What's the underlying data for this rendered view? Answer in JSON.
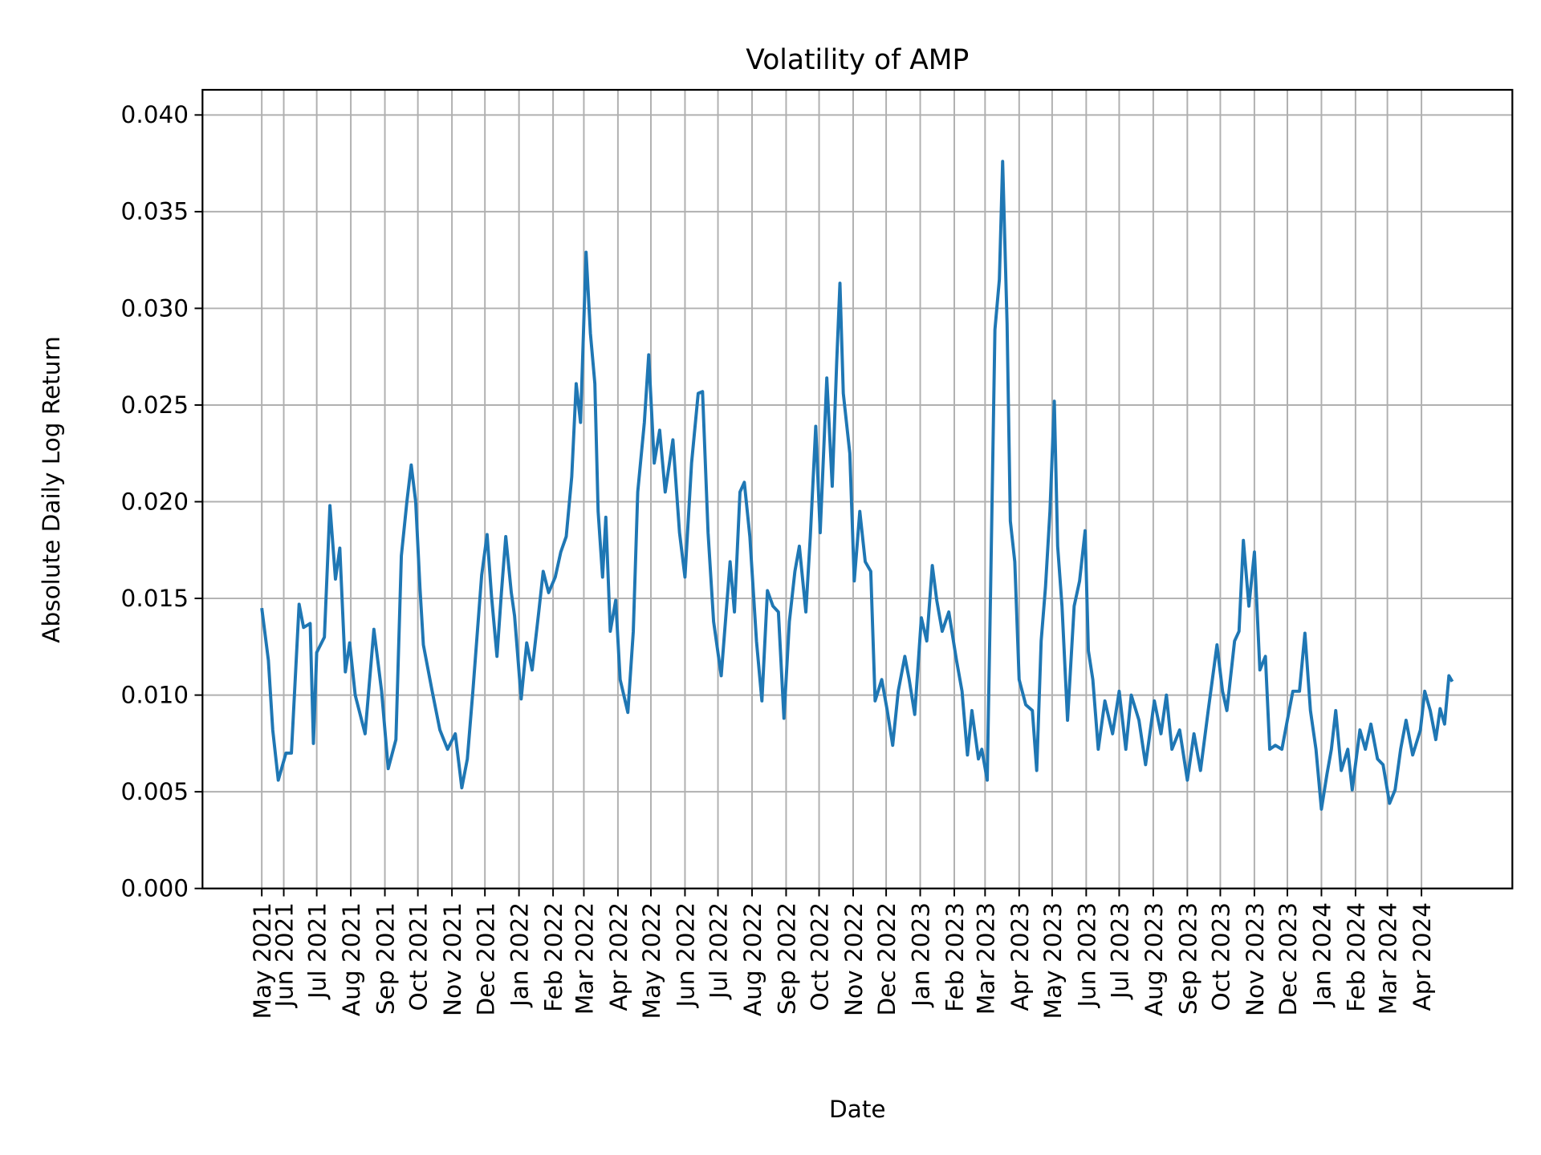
{
  "chart_data": {
    "type": "line",
    "title": "Volatility of AMP",
    "xlabel": "Date",
    "ylabel": "Absolute Daily Log Return",
    "ylim": [
      0,
      0.0413
    ],
    "yticks": [
      "0.000",
      "0.005",
      "0.010",
      "0.015",
      "0.020",
      "0.025",
      "0.030",
      "0.035",
      "0.040"
    ],
    "grid": true,
    "line_color": "#1f77b4",
    "xticks": [
      {
        "date": "2021-05-12",
        "label": "May 2021"
      },
      {
        "date": "2021-06-01",
        "label": "Jun 2021"
      },
      {
        "date": "2021-07-01",
        "label": "Jul 2021"
      },
      {
        "date": "2021-08-01",
        "label": "Aug 2021"
      },
      {
        "date": "2021-09-01",
        "label": "Sep 2021"
      },
      {
        "date": "2021-10-01",
        "label": "Oct 2021"
      },
      {
        "date": "2021-11-01",
        "label": "Nov 2021"
      },
      {
        "date": "2021-12-01",
        "label": "Dec 2021"
      },
      {
        "date": "2022-01-01",
        "label": "Jan 2022"
      },
      {
        "date": "2022-02-01",
        "label": "Feb 2022"
      },
      {
        "date": "2022-03-01",
        "label": "Mar 2022"
      },
      {
        "date": "2022-04-01",
        "label": "Apr 2022"
      },
      {
        "date": "2022-05-01",
        "label": "May 2022"
      },
      {
        "date": "2022-06-01",
        "label": "Jun 2022"
      },
      {
        "date": "2022-07-01",
        "label": "Jul 2022"
      },
      {
        "date": "2022-08-01",
        "label": "Aug 2022"
      },
      {
        "date": "2022-09-01",
        "label": "Sep 2022"
      },
      {
        "date": "2022-10-01",
        "label": "Oct 2022"
      },
      {
        "date": "2022-11-01",
        "label": "Nov 2022"
      },
      {
        "date": "2022-12-01",
        "label": "Dec 2022"
      },
      {
        "date": "2023-01-01",
        "label": "Jan 2023"
      },
      {
        "date": "2023-02-01",
        "label": "Feb 2023"
      },
      {
        "date": "2023-03-01",
        "label": "Mar 2023"
      },
      {
        "date": "2023-04-01",
        "label": "Apr 2023"
      },
      {
        "date": "2023-05-01",
        "label": "May 2023"
      },
      {
        "date": "2023-06-01",
        "label": "Jun 2023"
      },
      {
        "date": "2023-07-01",
        "label": "Jul 2023"
      },
      {
        "date": "2023-08-01",
        "label": "Aug 2023"
      },
      {
        "date": "2023-09-01",
        "label": "Sep 2023"
      },
      {
        "date": "2023-10-01",
        "label": "Oct 2023"
      },
      {
        "date": "2023-11-01",
        "label": "Nov 2023"
      },
      {
        "date": "2023-12-01",
        "label": "Dec 2023"
      },
      {
        "date": "2024-01-01",
        "label": "Jan 2024"
      },
      {
        "date": "2024-02-01",
        "label": "Feb 2024"
      },
      {
        "date": "2024-03-01",
        "label": "Mar 2024"
      },
      {
        "date": "2024-04-01",
        "label": "Apr 2024"
      }
    ],
    "series": [
      {
        "points": [
          [
            "2021-05-12",
            0.0145
          ],
          [
            "2021-05-18",
            0.0118
          ],
          [
            "2021-05-22",
            0.0082
          ],
          [
            "2021-05-27",
            0.0056
          ],
          [
            "2021-06-03",
            0.007
          ],
          [
            "2021-06-08",
            0.007
          ],
          [
            "2021-06-15",
            0.0147
          ],
          [
            "2021-06-19",
            0.0135
          ],
          [
            "2021-06-25",
            0.0137
          ],
          [
            "2021-06-28",
            0.0075
          ],
          [
            "2021-07-01",
            0.0122
          ],
          [
            "2021-07-08",
            0.013
          ],
          [
            "2021-07-13",
            0.0198
          ],
          [
            "2021-07-18",
            0.016
          ],
          [
            "2021-07-22",
            0.0176
          ],
          [
            "2021-07-27",
            0.0112
          ],
          [
            "2021-07-31",
            0.0127
          ],
          [
            "2021-08-05",
            0.01
          ],
          [
            "2021-08-14",
            0.008
          ],
          [
            "2021-08-22",
            0.0134
          ],
          [
            "2021-08-29",
            0.0102
          ],
          [
            "2021-09-04",
            0.0062
          ],
          [
            "2021-09-11",
            0.0077
          ],
          [
            "2021-09-16",
            0.0172
          ],
          [
            "2021-09-21",
            0.02
          ],
          [
            "2021-09-25",
            0.0219
          ],
          [
            "2021-09-29",
            0.02
          ],
          [
            "2021-10-03",
            0.0155
          ],
          [
            "2021-10-06",
            0.0126
          ],
          [
            "2021-10-14",
            0.0102
          ],
          [
            "2021-10-21",
            0.0082
          ],
          [
            "2021-10-28",
            0.0072
          ],
          [
            "2021-11-04",
            0.008
          ],
          [
            "2021-11-10",
            0.0052
          ],
          [
            "2021-11-15",
            0.0067
          ],
          [
            "2021-11-20",
            0.0102
          ],
          [
            "2021-11-28",
            0.0162
          ],
          [
            "2021-12-03",
            0.0183
          ],
          [
            "2021-12-07",
            0.0151
          ],
          [
            "2021-12-12",
            0.012
          ],
          [
            "2021-12-16",
            0.0153
          ],
          [
            "2021-12-20",
            0.0182
          ],
          [
            "2021-12-25",
            0.0153
          ],
          [
            "2021-12-28",
            0.0141
          ],
          [
            "2022-01-03",
            0.0098
          ],
          [
            "2022-01-08",
            0.0127
          ],
          [
            "2022-01-13",
            0.0113
          ],
          [
            "2022-01-19",
            0.0143
          ],
          [
            "2022-01-23",
            0.0164
          ],
          [
            "2022-01-28",
            0.0153
          ],
          [
            "2022-02-03",
            0.0161
          ],
          [
            "2022-02-08",
            0.0174
          ],
          [
            "2022-02-13",
            0.0182
          ],
          [
            "2022-02-18",
            0.0213
          ],
          [
            "2022-02-22",
            0.0261
          ],
          [
            "2022-02-26",
            0.0241
          ],
          [
            "2022-03-03",
            0.0329
          ],
          [
            "2022-03-07",
            0.0287
          ],
          [
            "2022-03-11",
            0.0261
          ],
          [
            "2022-03-14",
            0.0195
          ],
          [
            "2022-03-18",
            0.0161
          ],
          [
            "2022-03-21",
            0.0192
          ],
          [
            "2022-03-25",
            0.0133
          ],
          [
            "2022-03-30",
            0.0149
          ],
          [
            "2022-04-03",
            0.0108
          ],
          [
            "2022-04-10",
            0.0091
          ],
          [
            "2022-04-15",
            0.0133
          ],
          [
            "2022-04-19",
            0.0205
          ],
          [
            "2022-04-25",
            0.0241
          ],
          [
            "2022-04-29",
            0.0276
          ],
          [
            "2022-05-04",
            0.022
          ],
          [
            "2022-05-09",
            0.0237
          ],
          [
            "2022-05-14",
            0.0205
          ],
          [
            "2022-05-21",
            0.0232
          ],
          [
            "2022-05-27",
            0.0184
          ],
          [
            "2022-06-01",
            0.0161
          ],
          [
            "2022-06-07",
            0.022
          ],
          [
            "2022-06-13",
            0.0256
          ],
          [
            "2022-06-17",
            0.0257
          ],
          [
            "2022-06-22",
            0.0184
          ],
          [
            "2022-06-27",
            0.0138
          ],
          [
            "2022-07-04",
            0.011
          ],
          [
            "2022-07-12",
            0.0169
          ],
          [
            "2022-07-16",
            0.0143
          ],
          [
            "2022-07-21",
            0.0205
          ],
          [
            "2022-07-25",
            0.021
          ],
          [
            "2022-07-30",
            0.0182
          ],
          [
            "2022-08-05",
            0.0128
          ],
          [
            "2022-08-10",
            0.0097
          ],
          [
            "2022-08-15",
            0.0154
          ],
          [
            "2022-08-20",
            0.0146
          ],
          [
            "2022-08-25",
            0.0143
          ],
          [
            "2022-08-30",
            0.0088
          ],
          [
            "2022-09-04",
            0.0138
          ],
          [
            "2022-09-09",
            0.0164
          ],
          [
            "2022-09-13",
            0.0177
          ],
          [
            "2022-09-19",
            0.0143
          ],
          [
            "2022-09-23",
            0.0182
          ],
          [
            "2022-09-28",
            0.0239
          ],
          [
            "2022-10-02",
            0.0184
          ],
          [
            "2022-10-08",
            0.0264
          ],
          [
            "2022-10-13",
            0.0208
          ],
          [
            "2022-10-17",
            0.0272
          ],
          [
            "2022-10-20",
            0.0313
          ],
          [
            "2022-10-23",
            0.0256
          ],
          [
            "2022-10-29",
            0.0225
          ],
          [
            "2022-11-02",
            0.0159
          ],
          [
            "2022-11-07",
            0.0195
          ],
          [
            "2022-11-12",
            0.0169
          ],
          [
            "2022-11-17",
            0.0164
          ],
          [
            "2022-11-21",
            0.0097
          ],
          [
            "2022-11-27",
            0.0108
          ],
          [
            "2022-12-02",
            0.0092
          ],
          [
            "2022-12-07",
            0.0074
          ],
          [
            "2022-12-12",
            0.0102
          ],
          [
            "2022-12-18",
            0.012
          ],
          [
            "2022-12-22",
            0.0108
          ],
          [
            "2022-12-27",
            0.009
          ],
          [
            "2023-01-02",
            0.014
          ],
          [
            "2023-01-07",
            0.0128
          ],
          [
            "2023-01-12",
            0.0167
          ],
          [
            "2023-01-16",
            0.0149
          ],
          [
            "2023-01-21",
            0.0133
          ],
          [
            "2023-01-27",
            0.0143
          ],
          [
            "2023-02-03",
            0.0118
          ],
          [
            "2023-02-08",
            0.0102
          ],
          [
            "2023-02-13",
            0.0069
          ],
          [
            "2023-02-17",
            0.0092
          ],
          [
            "2023-02-23",
            0.0067
          ],
          [
            "2023-02-26",
            0.0072
          ],
          [
            "2023-03-03",
            0.0056
          ],
          [
            "2023-03-06",
            0.0154
          ],
          [
            "2023-03-10",
            0.0289
          ],
          [
            "2023-03-14",
            0.0315
          ],
          [
            "2023-03-17",
            0.0376
          ],
          [
            "2023-03-21",
            0.0292
          ],
          [
            "2023-03-24",
            0.019
          ],
          [
            "2023-03-28",
            0.0169
          ],
          [
            "2023-04-01",
            0.0108
          ],
          [
            "2023-04-07",
            0.0095
          ],
          [
            "2023-04-13",
            0.0092
          ],
          [
            "2023-04-17",
            0.0061
          ],
          [
            "2023-04-21",
            0.0128
          ],
          [
            "2023-04-25",
            0.0156
          ],
          [
            "2023-04-29",
            0.0195
          ],
          [
            "2023-05-03",
            0.0252
          ],
          [
            "2023-05-06",
            0.0177
          ],
          [
            "2023-05-10",
            0.0146
          ],
          [
            "2023-05-15",
            0.0087
          ],
          [
            "2023-05-21",
            0.0146
          ],
          [
            "2023-05-26",
            0.0159
          ],
          [
            "2023-05-31",
            0.0185
          ],
          [
            "2023-06-03",
            0.0123
          ],
          [
            "2023-06-07",
            0.0108
          ],
          [
            "2023-06-12",
            0.0072
          ],
          [
            "2023-06-18",
            0.0097
          ],
          [
            "2023-06-25",
            0.008
          ],
          [
            "2023-07-01",
            0.0102
          ],
          [
            "2023-07-07",
            0.0072
          ],
          [
            "2023-07-12",
            0.01
          ],
          [
            "2023-07-19",
            0.0087
          ],
          [
            "2023-07-25",
            0.0064
          ],
          [
            "2023-08-02",
            0.0097
          ],
          [
            "2023-08-08",
            0.008
          ],
          [
            "2023-08-13",
            0.01
          ],
          [
            "2023-08-18",
            0.0072
          ],
          [
            "2023-08-25",
            0.0082
          ],
          [
            "2023-09-01",
            0.0056
          ],
          [
            "2023-09-07",
            0.008
          ],
          [
            "2023-09-13",
            0.0061
          ],
          [
            "2023-09-20",
            0.0092
          ],
          [
            "2023-09-28",
            0.0126
          ],
          [
            "2023-10-03",
            0.0102
          ],
          [
            "2023-10-07",
            0.0092
          ],
          [
            "2023-10-14",
            0.0128
          ],
          [
            "2023-10-18",
            0.0133
          ],
          [
            "2023-10-22",
            0.018
          ],
          [
            "2023-10-27",
            0.0146
          ],
          [
            "2023-11-01",
            0.0174
          ],
          [
            "2023-11-06",
            0.0113
          ],
          [
            "2023-11-11",
            0.012
          ],
          [
            "2023-11-15",
            0.0072
          ],
          [
            "2023-11-20",
            0.0074
          ],
          [
            "2023-11-26",
            0.0072
          ],
          [
            "2023-12-01",
            0.0087
          ],
          [
            "2023-12-06",
            0.0102
          ],
          [
            "2023-12-12",
            0.0102
          ],
          [
            "2023-12-17",
            0.0132
          ],
          [
            "2023-12-22",
            0.0092
          ],
          [
            "2023-12-27",
            0.0072
          ],
          [
            "2024-01-01",
            0.0041
          ],
          [
            "2024-01-06",
            0.0059
          ],
          [
            "2024-01-10",
            0.0072
          ],
          [
            "2024-01-14",
            0.0092
          ],
          [
            "2024-01-19",
            0.0061
          ],
          [
            "2024-01-25",
            0.0072
          ],
          [
            "2024-01-29",
            0.0051
          ],
          [
            "2024-02-05",
            0.0082
          ],
          [
            "2024-02-10",
            0.0072
          ],
          [
            "2024-02-15",
            0.0085
          ],
          [
            "2024-02-21",
            0.0067
          ],
          [
            "2024-02-26",
            0.0064
          ],
          [
            "2024-03-03",
            0.0044
          ],
          [
            "2024-03-08",
            0.0051
          ],
          [
            "2024-03-13",
            0.0072
          ],
          [
            "2024-03-18",
            0.0087
          ],
          [
            "2024-03-24",
            0.0069
          ],
          [
            "2024-03-31",
            0.0082
          ],
          [
            "2024-04-04",
            0.0102
          ],
          [
            "2024-04-09",
            0.0092
          ],
          [
            "2024-04-14",
            0.0077
          ],
          [
            "2024-04-18",
            0.0093
          ],
          [
            "2024-04-22",
            0.0085
          ],
          [
            "2024-04-26",
            0.011
          ],
          [
            "2024-04-29",
            0.0107
          ]
        ]
      }
    ]
  }
}
